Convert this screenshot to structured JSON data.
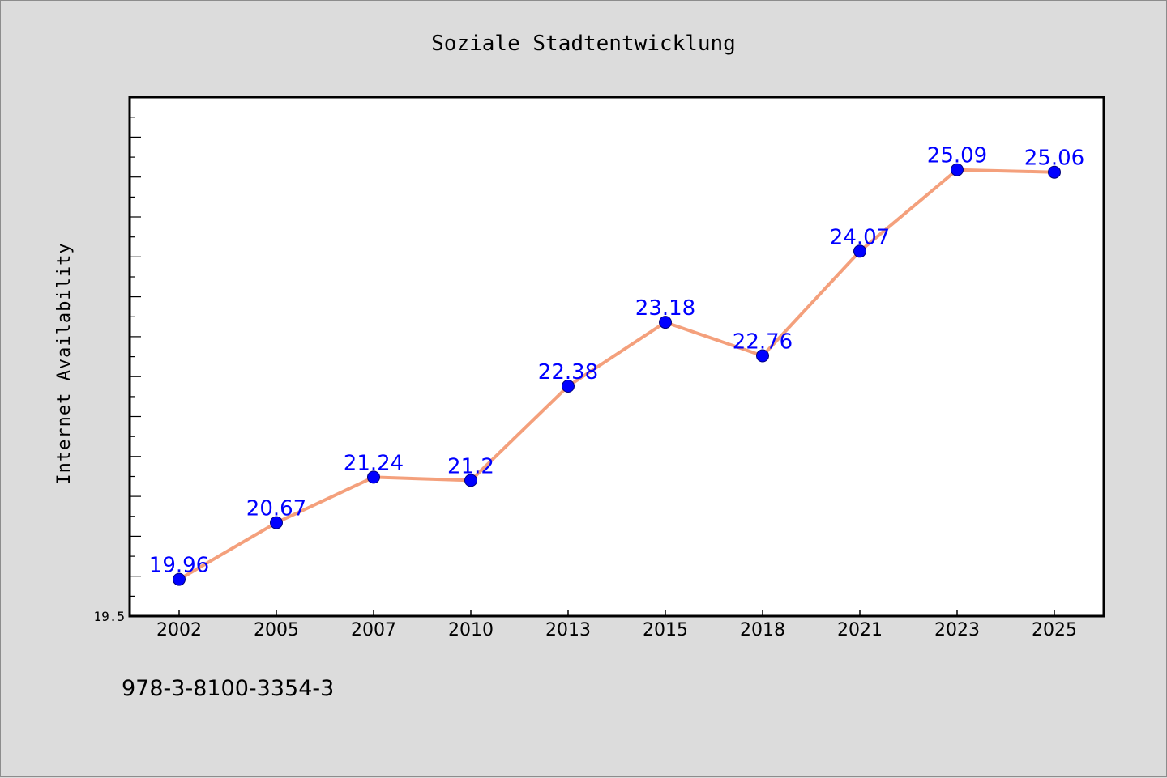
{
  "footer": {
    "code": "978-3-8100-3354-3"
  },
  "chart_data": {
    "type": "line",
    "title": "Soziale Stadtentwicklung",
    "xlabel": "",
    "ylabel": "Internet Availability",
    "categories": [
      "2002",
      "2005",
      "2007",
      "2010",
      "2013",
      "2015",
      "2018",
      "2021",
      "2023",
      "2025"
    ],
    "values": [
      19.96,
      20.67,
      21.24,
      21.2,
      22.38,
      23.18,
      22.76,
      24.07,
      25.09,
      25.06
    ],
    "data_labels": [
      "19.96",
      "20.67",
      "21.24",
      "21.2",
      "22.38",
      "23.18",
      "22.76",
      "24.07",
      "25.09",
      "25.06"
    ],
    "ylim": [
      19.5,
      26.0
    ],
    "y_tick_labels": [
      "19.5"
    ],
    "grid": false,
    "line_color": "#f4a07c",
    "marker_color": "#0000ff",
    "label_color": "#0000ff"
  }
}
